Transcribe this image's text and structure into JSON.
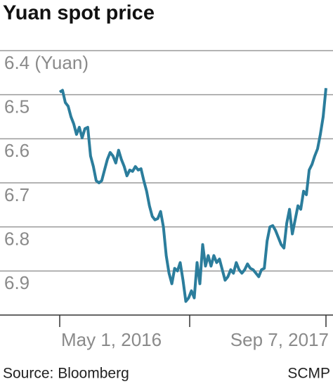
{
  "chart_data": {
    "type": "line",
    "title": "Yuan spot price",
    "source": "Source: Bloomberg",
    "credit": "SCMP",
    "categories": [
      "May 1, 2016",
      null,
      null,
      null,
      null,
      null,
      null,
      null,
      null,
      null,
      null,
      null,
      null,
      null,
      null,
      null,
      null,
      null,
      null,
      null,
      null,
      null,
      null,
      null,
      null,
      null,
      null,
      null,
      null,
      null,
      null,
      null,
      null,
      null,
      null,
      null,
      null,
      null,
      null,
      null,
      null,
      null,
      null,
      null,
      null,
      null,
      null,
      null,
      null,
      null,
      null,
      null,
      null,
      null,
      null,
      null,
      null,
      null,
      null,
      null,
      null,
      null,
      null,
      null,
      null,
      null,
      null,
      null,
      null,
      null,
      null,
      null,
      null,
      null,
      null,
      null,
      null,
      null,
      null,
      null,
      null,
      null,
      null,
      null,
      null,
      null,
      null,
      null,
      null,
      null,
      null,
      null,
      null,
      null,
      null,
      "Sep 7, 2017"
    ],
    "series": [
      {
        "name": "Yuan",
        "color": "#2b7d9c",
        "values": [
          6.494,
          6.49,
          6.518,
          6.526,
          6.55,
          6.566,
          6.59,
          6.574,
          6.598,
          6.577,
          6.574,
          6.639,
          6.663,
          6.695,
          6.7,
          6.695,
          6.671,
          6.647,
          6.631,
          6.639,
          6.655,
          6.626,
          6.647,
          6.663,
          6.684,
          6.671,
          6.674,
          6.663,
          6.671,
          6.668,
          6.695,
          6.719,
          6.752,
          6.776,
          6.784,
          6.781,
          6.765,
          6.8,
          6.865,
          6.905,
          6.929,
          6.894,
          6.9,
          6.881,
          6.921,
          6.969,
          6.961,
          6.945,
          6.961,
          6.881,
          6.929,
          6.84,
          6.889,
          6.865,
          6.889,
          6.865,
          6.881,
          6.873,
          6.897,
          6.921,
          6.913,
          6.897,
          6.905,
          6.881,
          6.897,
          6.905,
          6.897,
          6.884,
          6.894,
          6.897,
          6.905,
          6.913,
          6.897,
          6.894,
          6.832,
          6.8,
          6.797,
          6.808,
          6.824,
          6.84,
          6.848,
          6.792,
          6.76,
          6.816,
          6.784,
          6.752,
          6.76,
          6.719,
          6.727,
          6.671,
          6.658,
          6.639,
          6.623,
          6.59,
          6.55,
          6.485
        ]
      }
    ],
    "ylim": [
      6.4,
      7.0
    ],
    "inverted_y": true,
    "yticks": [
      {
        "value": 6.4,
        "label": "6.4 (Yuan)"
      },
      6.5,
      6.6,
      6.7,
      6.8,
      6.9
    ],
    "grid": true
  }
}
